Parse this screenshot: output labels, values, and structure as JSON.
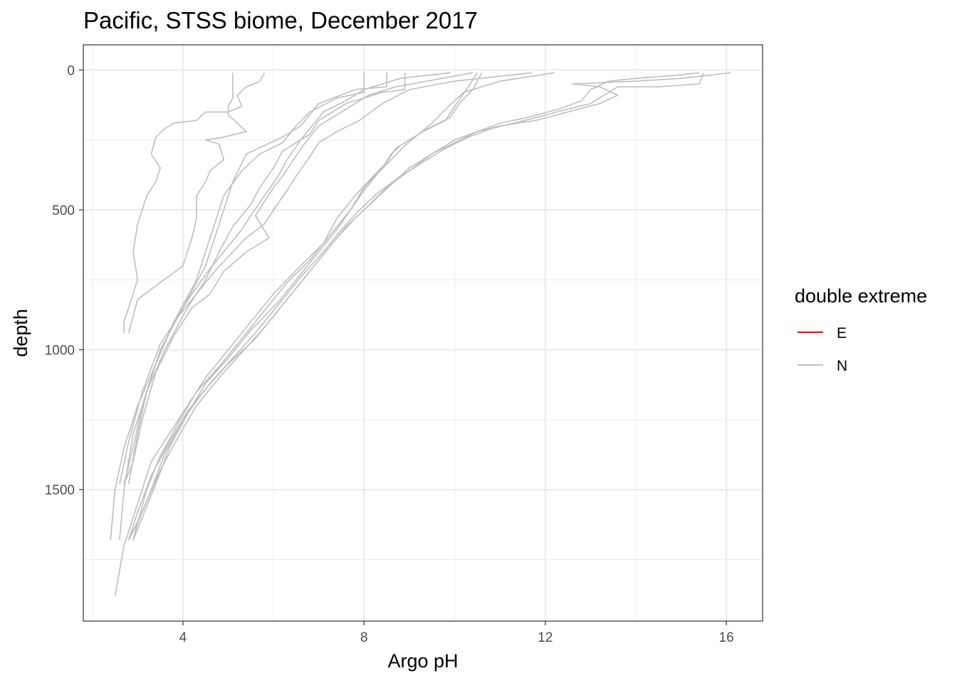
{
  "chart_data": {
    "type": "line",
    "title": "Pacific, STSS biome, December 2017",
    "xlabel": "Argo pH",
    "ylabel": "depth",
    "xlim": [
      1.8,
      16.8
    ],
    "ylim": [
      1970,
      -90
    ],
    "y_reversed": true,
    "x_ticks": [
      4,
      8,
      12,
      16
    ],
    "x_tick_labels": [
      "4",
      "8",
      "12",
      "16"
    ],
    "y_ticks": [
      0,
      500,
      1000,
      1500
    ],
    "y_tick_labels": [
      "0",
      "500",
      "1000",
      "1500"
    ],
    "grid": true,
    "legend": {
      "title": "double extreme",
      "position": "right",
      "entries": [
        {
          "label": "E",
          "color": "#ff0000"
        },
        {
          "label": "N",
          "color": "#bebebe"
        }
      ]
    },
    "series": [
      {
        "group": "N",
        "points": [
          [
            5.8,
            10
          ],
          [
            5.7,
            40
          ],
          [
            5.4,
            60
          ],
          [
            5.2,
            90
          ],
          [
            5.3,
            130
          ],
          [
            5.0,
            150
          ],
          [
            4.5,
            150
          ],
          [
            4.3,
            180
          ],
          [
            3.8,
            190
          ],
          [
            3.6,
            210
          ],
          [
            3.4,
            240
          ],
          [
            3.3,
            300
          ],
          [
            3.5,
            350
          ],
          [
            3.4,
            400
          ],
          [
            3.2,
            450
          ],
          [
            3.0,
            550
          ],
          [
            2.9,
            650
          ],
          [
            3.0,
            750
          ],
          [
            2.8,
            850
          ],
          [
            2.7,
            900
          ],
          [
            2.7,
            940
          ]
        ]
      },
      {
        "group": "N",
        "points": [
          [
            5.1,
            10
          ],
          [
            5.1,
            100
          ],
          [
            5.0,
            130
          ],
          [
            5.0,
            160
          ],
          [
            5.2,
            190
          ],
          [
            5.4,
            220
          ],
          [
            4.9,
            240
          ],
          [
            4.5,
            250
          ],
          [
            4.8,
            265
          ],
          [
            4.9,
            320
          ],
          [
            4.6,
            360
          ],
          [
            4.5,
            400
          ],
          [
            4.3,
            450
          ],
          [
            4.3,
            530
          ],
          [
            4.2,
            600
          ],
          [
            4.0,
            700
          ],
          [
            3.5,
            760
          ],
          [
            3.0,
            820
          ],
          [
            2.9,
            880
          ],
          [
            2.8,
            940
          ]
        ]
      },
      {
        "group": "N",
        "points": [
          [
            8.5,
            10
          ],
          [
            8.5,
            60
          ],
          [
            7.8,
            70
          ],
          [
            7.0,
            120
          ],
          [
            6.6,
            200
          ],
          [
            6.2,
            240
          ],
          [
            5.8,
            270
          ],
          [
            5.4,
            300
          ],
          [
            5.1,
            400
          ],
          [
            4.8,
            550
          ],
          [
            4.5,
            700
          ],
          [
            4.0,
            850
          ],
          [
            3.5,
            1000
          ],
          [
            3.2,
            1150
          ],
          [
            2.9,
            1300
          ],
          [
            2.7,
            1500
          ],
          [
            2.6,
            1680
          ]
        ]
      },
      {
        "group": "N",
        "points": [
          [
            8.0,
            10
          ],
          [
            8.0,
            80
          ],
          [
            7.4,
            100
          ],
          [
            6.8,
            150
          ],
          [
            6.5,
            200
          ],
          [
            6.2,
            260
          ],
          [
            5.7,
            300
          ],
          [
            5.3,
            360
          ],
          [
            4.9,
            450
          ],
          [
            4.6,
            600
          ],
          [
            4.3,
            750
          ],
          [
            3.8,
            900
          ],
          [
            3.4,
            1050
          ],
          [
            3.0,
            1200
          ],
          [
            2.7,
            1350
          ],
          [
            2.5,
            1500
          ],
          [
            2.4,
            1680
          ]
        ]
      },
      {
        "group": "N",
        "points": [
          [
            8.9,
            10
          ],
          [
            8.9,
            70
          ],
          [
            8.4,
            80
          ],
          [
            7.6,
            120
          ],
          [
            7.0,
            180
          ],
          [
            6.8,
            230
          ],
          [
            6.5,
            260
          ],
          [
            6.2,
            290
          ],
          [
            6.0,
            350
          ],
          [
            5.7,
            420
          ],
          [
            5.5,
            480
          ],
          [
            5.1,
            560
          ],
          [
            4.8,
            650
          ],
          [
            4.5,
            750
          ],
          [
            4.1,
            850
          ],
          [
            3.6,
            1000
          ],
          [
            3.2,
            1150
          ],
          [
            3.0,
            1300
          ],
          [
            2.8,
            1480
          ]
        ]
      },
      {
        "group": "N",
        "points": [
          [
            9.9,
            10
          ],
          [
            8.8,
            30
          ],
          [
            8.0,
            70
          ],
          [
            7.6,
            110
          ],
          [
            7.1,
            150
          ],
          [
            6.9,
            190
          ],
          [
            6.6,
            250
          ],
          [
            6.3,
            320
          ],
          [
            6.1,
            380
          ],
          [
            5.8,
            450
          ],
          [
            5.5,
            520
          ],
          [
            5.3,
            570
          ],
          [
            4.9,
            650
          ],
          [
            4.6,
            710
          ],
          [
            4.2,
            800
          ],
          [
            3.8,
            900
          ],
          [
            3.4,
            1050
          ],
          [
            3.1,
            1200
          ],
          [
            2.9,
            1350
          ],
          [
            2.7,
            1480
          ]
        ]
      },
      {
        "group": "N",
        "points": [
          [
            10.4,
            10
          ],
          [
            8.7,
            60
          ],
          [
            8.1,
            90
          ],
          [
            7.5,
            150
          ],
          [
            7.0,
            200
          ],
          [
            6.7,
            260
          ],
          [
            6.4,
            330
          ],
          [
            6.2,
            380
          ],
          [
            6.0,
            420
          ],
          [
            5.8,
            470
          ],
          [
            5.6,
            520
          ],
          [
            5.9,
            600
          ],
          [
            5.4,
            650
          ],
          [
            4.9,
            720
          ],
          [
            4.6,
            800
          ],
          [
            4.2,
            850
          ],
          [
            3.8,
            950
          ],
          [
            3.4,
            1080
          ],
          [
            3.1,
            1250
          ],
          [
            2.9,
            1400
          ],
          [
            2.7,
            1480
          ]
        ]
      },
      {
        "group": "N",
        "points": [
          [
            11.7,
            10
          ],
          [
            10.0,
            40
          ],
          [
            9.0,
            70
          ],
          [
            8.4,
            120
          ],
          [
            7.9,
            180
          ],
          [
            7.4,
            220
          ],
          [
            7.0,
            260
          ],
          [
            6.8,
            310
          ],
          [
            6.5,
            380
          ],
          [
            6.3,
            430
          ],
          [
            6.0,
            500
          ],
          [
            5.8,
            550
          ],
          [
            5.4,
            600
          ],
          [
            5.1,
            650
          ],
          [
            4.7,
            720
          ],
          [
            4.3,
            800
          ],
          [
            3.9,
            880
          ],
          [
            3.5,
            980
          ],
          [
            3.1,
            1150
          ],
          [
            2.8,
            1330
          ],
          [
            2.6,
            1480
          ]
        ]
      },
      {
        "group": "N",
        "points": [
          [
            10.5,
            10
          ],
          [
            10.3,
            60
          ],
          [
            10.0,
            130
          ],
          [
            9.8,
            180
          ],
          [
            9.3,
            220
          ],
          [
            9.0,
            250
          ],
          [
            8.7,
            280
          ],
          [
            8.5,
            330
          ],
          [
            8.2,
            380
          ],
          [
            7.8,
            450
          ],
          [
            7.4,
            530
          ],
          [
            7.1,
            620
          ],
          [
            6.6,
            700
          ],
          [
            6.0,
            800
          ],
          [
            5.5,
            900
          ],
          [
            5.0,
            1000
          ],
          [
            4.5,
            1100
          ],
          [
            4.1,
            1200
          ],
          [
            3.7,
            1300
          ],
          [
            3.3,
            1400
          ],
          [
            3.0,
            1550
          ],
          [
            2.7,
            1700
          ],
          [
            2.5,
            1880
          ]
        ]
      },
      {
        "group": "N",
        "points": [
          [
            10.6,
            10
          ],
          [
            10.4,
            70
          ],
          [
            10.1,
            120
          ],
          [
            9.9,
            170
          ],
          [
            9.4,
            210
          ],
          [
            9.1,
            240
          ],
          [
            8.8,
            270
          ],
          [
            8.6,
            300
          ],
          [
            8.4,
            350
          ],
          [
            8.0,
            420
          ],
          [
            7.7,
            500
          ],
          [
            7.3,
            580
          ],
          [
            6.8,
            680
          ],
          [
            6.3,
            760
          ],
          [
            5.8,
            860
          ],
          [
            5.3,
            960
          ],
          [
            4.8,
            1060
          ],
          [
            4.3,
            1150
          ],
          [
            3.9,
            1260
          ],
          [
            3.5,
            1380
          ],
          [
            3.2,
            1500
          ],
          [
            2.9,
            1680
          ]
        ]
      },
      {
        "group": "N",
        "points": [
          [
            12.2,
            10
          ],
          [
            11.0,
            40
          ],
          [
            10.2,
            80
          ],
          [
            9.8,
            140
          ],
          [
            9.5,
            190
          ],
          [
            9.2,
            230
          ],
          [
            8.9,
            270
          ],
          [
            8.6,
            320
          ],
          [
            8.3,
            370
          ],
          [
            8.0,
            430
          ],
          [
            7.7,
            500
          ],
          [
            7.4,
            570
          ],
          [
            7.0,
            650
          ],
          [
            6.6,
            730
          ],
          [
            6.1,
            830
          ],
          [
            5.5,
            930
          ],
          [
            5.0,
            1030
          ],
          [
            4.5,
            1120
          ],
          [
            4.1,
            1230
          ],
          [
            3.7,
            1350
          ],
          [
            3.4,
            1480
          ],
          [
            3.1,
            1600
          ],
          [
            2.9,
            1680
          ]
        ]
      },
      {
        "group": "N",
        "points": [
          [
            16.1,
            10
          ],
          [
            15.0,
            30
          ],
          [
            14.0,
            40
          ],
          [
            12.6,
            50
          ],
          [
            13.2,
            60
          ],
          [
            13.6,
            90
          ],
          [
            13.2,
            120
          ],
          [
            12.5,
            150
          ],
          [
            11.8,
            180
          ],
          [
            11.0,
            200
          ],
          [
            10.5,
            220
          ],
          [
            10.0,
            250
          ],
          [
            9.5,
            300
          ],
          [
            9.0,
            360
          ],
          [
            8.5,
            420
          ],
          [
            8.0,
            500
          ],
          [
            7.6,
            560
          ],
          [
            7.2,
            640
          ],
          [
            6.8,
            720
          ],
          [
            6.3,
            820
          ],
          [
            5.8,
            920
          ],
          [
            5.3,
            1010
          ],
          [
            4.8,
            1100
          ],
          [
            4.3,
            1200
          ],
          [
            3.9,
            1310
          ],
          [
            3.5,
            1430
          ],
          [
            3.1,
            1580
          ],
          [
            2.8,
            1680
          ]
        ]
      },
      {
        "group": "N",
        "points": [
          [
            15.5,
            10
          ],
          [
            15.4,
            50
          ],
          [
            14.5,
            60
          ],
          [
            13.6,
            60
          ],
          [
            13.3,
            90
          ],
          [
            13.0,
            120
          ],
          [
            12.5,
            140
          ],
          [
            11.8,
            170
          ],
          [
            11.3,
            190
          ],
          [
            10.8,
            210
          ],
          [
            10.3,
            240
          ],
          [
            9.8,
            280
          ],
          [
            9.3,
            330
          ],
          [
            8.8,
            380
          ],
          [
            8.3,
            440
          ],
          [
            7.9,
            500
          ],
          [
            7.5,
            570
          ],
          [
            7.1,
            650
          ],
          [
            6.6,
            740
          ],
          [
            6.1,
            840
          ],
          [
            5.6,
            940
          ],
          [
            5.1,
            1030
          ],
          [
            4.6,
            1120
          ],
          [
            4.1,
            1220
          ],
          [
            3.7,
            1330
          ],
          [
            3.3,
            1450
          ],
          [
            3.0,
            1580
          ],
          [
            2.8,
            1680
          ]
        ]
      },
      {
        "group": "N",
        "points": [
          [
            15.4,
            10
          ],
          [
            14.8,
            20
          ],
          [
            14.0,
            30
          ],
          [
            13.4,
            40
          ],
          [
            13.0,
            70
          ],
          [
            12.8,
            110
          ],
          [
            12.3,
            140
          ],
          [
            11.6,
            170
          ],
          [
            11.0,
            190
          ],
          [
            10.5,
            220
          ],
          [
            10.0,
            260
          ],
          [
            9.5,
            300
          ],
          [
            9.0,
            350
          ],
          [
            8.6,
            410
          ],
          [
            8.2,
            470
          ],
          [
            7.8,
            530
          ],
          [
            7.4,
            600
          ],
          [
            7.0,
            680
          ],
          [
            6.6,
            760
          ],
          [
            6.1,
            860
          ],
          [
            5.6,
            960
          ],
          [
            5.0,
            1050
          ],
          [
            4.5,
            1140
          ],
          [
            4.0,
            1250
          ],
          [
            3.6,
            1370
          ],
          [
            3.3,
            1500
          ],
          [
            3.0,
            1620
          ],
          [
            2.8,
            1680
          ]
        ]
      }
    ]
  }
}
